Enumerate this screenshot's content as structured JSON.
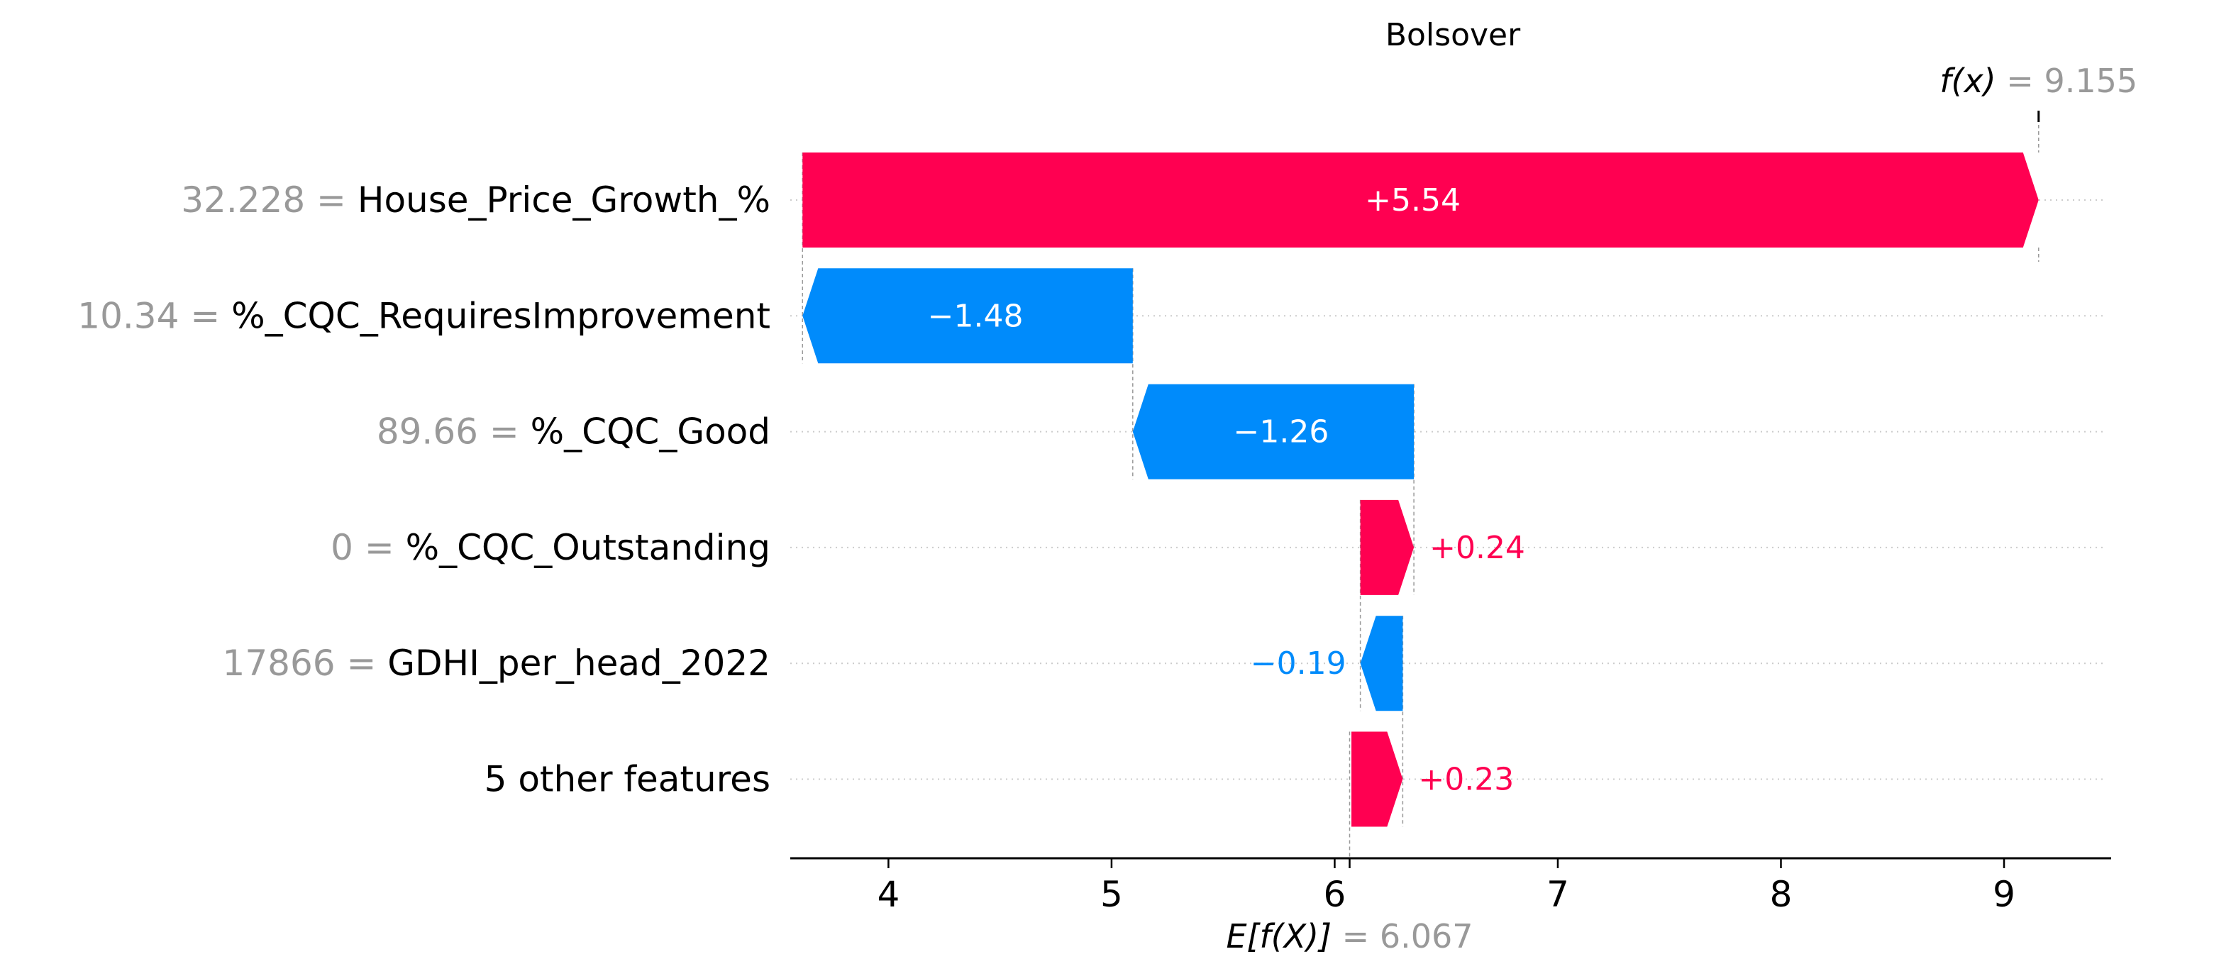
{
  "chart_data": {
    "type": "waterfall",
    "title": "Bolsover",
    "fx": {
      "label": "f(x)",
      "value": "9.155",
      "numeric": 9.155
    },
    "expected": {
      "label": "E[f(X)]",
      "value": "6.067",
      "numeric": 6.067
    },
    "xlim": [
      3.56,
      9.48
    ],
    "xticks": [
      4,
      5,
      6,
      7,
      8,
      9
    ],
    "grid": "dotted horizontal per row",
    "features": [
      {
        "value": "32.228",
        "name": "House_Price_Growth_%",
        "contribution": 5.54,
        "label": "+5.54"
      },
      {
        "value": "10.34",
        "name": "%_CQC_RequiresImprovement",
        "contribution": -1.48,
        "label": "−1.48"
      },
      {
        "value": "89.66",
        "name": "%_CQC_Good",
        "contribution": -1.26,
        "label": "−1.26"
      },
      {
        "value": "0",
        "name": "%_CQC_Outstanding",
        "contribution": 0.24,
        "label": "+0.24"
      },
      {
        "value": "17866",
        "name": "GDHI_per_head_2022",
        "contribution": -0.19,
        "label": "−0.19"
      },
      {
        "value": "",
        "name": "5 other features",
        "contribution": 0.23,
        "label": "+0.23"
      }
    ],
    "colors": {
      "positive": "#ff0051",
      "negative": "#008bfb",
      "value_text": "#999999",
      "label_text": "#000000",
      "inside_text": "#ffffff"
    }
  }
}
